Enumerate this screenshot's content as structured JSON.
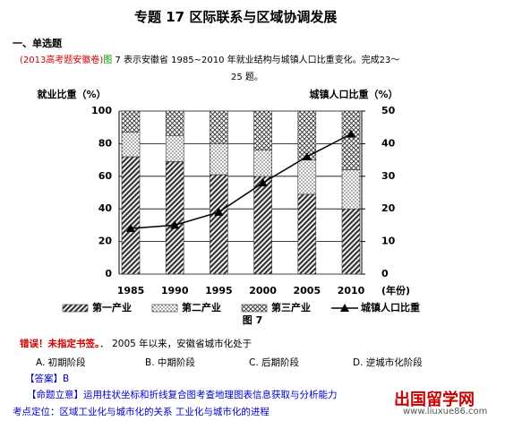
{
  "header": {
    "title": "专题 17  区际联系与区域协调发展",
    "section": "一、单选题"
  },
  "question": {
    "source": "(2013高考题安徽卷)",
    "fig_ref": "图",
    "text": " 7 表示安徽省 1985~2010 年就业结构与城镇人口比重变化。完成23～",
    "text2": "25 题。"
  },
  "chart_data": {
    "type": "bar",
    "stacked": true,
    "y_label": "就业比重（%）",
    "y2_label": "城镇人口比重（%）",
    "x_label": "(年份)",
    "caption": "图 7",
    "categories": [
      "1985",
      "1990",
      "1995",
      "2000",
      "2005",
      "2010"
    ],
    "series": [
      {
        "name": "第一产业",
        "color": "#333333",
        "pattern": "hatch",
        "values": [
          72,
          69,
          61,
          60,
          49,
          40
        ]
      },
      {
        "name": "第二产业",
        "color": "#333333",
        "pattern": "dots",
        "values": [
          15,
          16,
          19,
          16,
          21,
          24
        ]
      },
      {
        "name": "第三产业",
        "color": "#333333",
        "pattern": "cross",
        "values": [
          13,
          15,
          20,
          24,
          30,
          36
        ]
      },
      {
        "name": "城镇人口比重",
        "color": "#000000",
        "type": "line",
        "axis": "y2",
        "values": [
          14,
          15,
          19,
          28,
          36,
          43
        ]
      }
    ],
    "ylim": [
      0,
      100
    ],
    "yticks": [
      0,
      20,
      40,
      60,
      80,
      100
    ],
    "y2lim": [
      0,
      50
    ],
    "y2ticks": [
      0,
      10,
      20,
      30,
      40,
      50
    ],
    "grid": true
  },
  "q23": {
    "error": "错误！未指定书签。",
    "text": "．  2005 年以来，安徽省城市化处于",
    "options": [
      "A.   初期阶段",
      "B.   中期阶段",
      "C.   后期阶段",
      "D.   逆城市化阶段"
    ]
  },
  "answer": "【答案】B",
  "intent": {
    "label": "【命题立意】",
    "text": "运用柱状坐标和折线复合图考查地理图表信息获取与分析能力"
  },
  "point": "考点定位：区域工业化与城市化的关系    工业化与城市化的进程",
  "watermark": {
    "name": "出国留学网",
    "url": "www.liuxue86.com"
  }
}
